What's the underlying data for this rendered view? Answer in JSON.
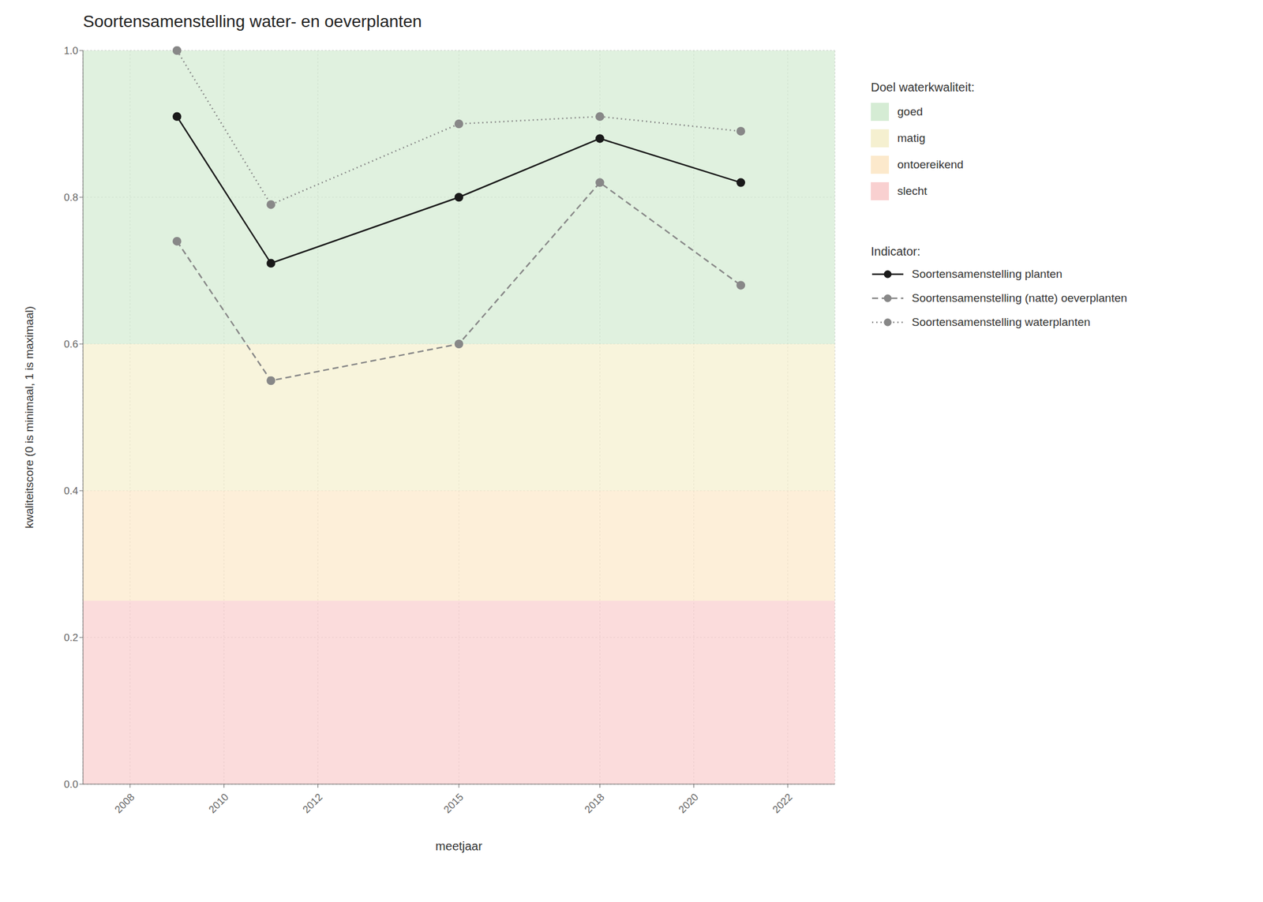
{
  "chart_data": {
    "type": "line",
    "title": "Soortensamenstelling water- en oeverplanten",
    "xlabel": "meetjaar",
    "ylabel": "kwaliteitscore (0 is minimaal, 1 is maximaal)",
    "x": [
      2009,
      2011,
      2015,
      2018,
      2021
    ],
    "xlim": [
      2007.0,
      2023.0
    ],
    "xticks": [
      2008,
      2010,
      2012,
      2015,
      2018,
      2020,
      2022
    ],
    "ylim": [
      0.0,
      1.0
    ],
    "yticks": [
      {
        "value": 0.0,
        "label": "0.0"
      },
      0.2,
      0.4,
      0.6,
      0.8,
      {
        "value": 1.0,
        "label": "1.0"
      }
    ],
    "grid": true,
    "legend": "right",
    "bands_legend_title": "Doel waterkwaliteit:",
    "bands": [
      {
        "name": "goed",
        "ymin": 0.6,
        "ymax": 1.0,
        "color": "#d5ecd4"
      },
      {
        "name": "matig",
        "ymin": 0.4,
        "ymax": 0.6,
        "color": "#f5f0d0"
      },
      {
        "name": "ontoereikend",
        "ymin": 0.25,
        "ymax": 0.4,
        "color": "#fce9cc"
      },
      {
        "name": "slecht",
        "ymin": 0.0,
        "ymax": 0.25,
        "color": "#f9d0d0"
      }
    ],
    "series_legend_title": "Indicator:",
    "series": [
      {
        "name": "Soortensamenstelling planten",
        "values": [
          0.91,
          0.71,
          0.8,
          0.88,
          0.82
        ],
        "color": "#1a1a1a",
        "line_style": "solid",
        "marker": "circle"
      },
      {
        "name": "Soortensamenstelling (natte) oeverplanten",
        "values": [
          0.74,
          0.55,
          0.6,
          0.82,
          0.68
        ],
        "color": "#888888",
        "line_style": "dashed",
        "marker": "circle"
      },
      {
        "name": "Soortensamenstelling waterplanten",
        "values": [
          1.0,
          0.79,
          0.9,
          0.91,
          0.89
        ],
        "color": "#888888",
        "line_style": "dotted",
        "marker": "circle"
      }
    ]
  }
}
